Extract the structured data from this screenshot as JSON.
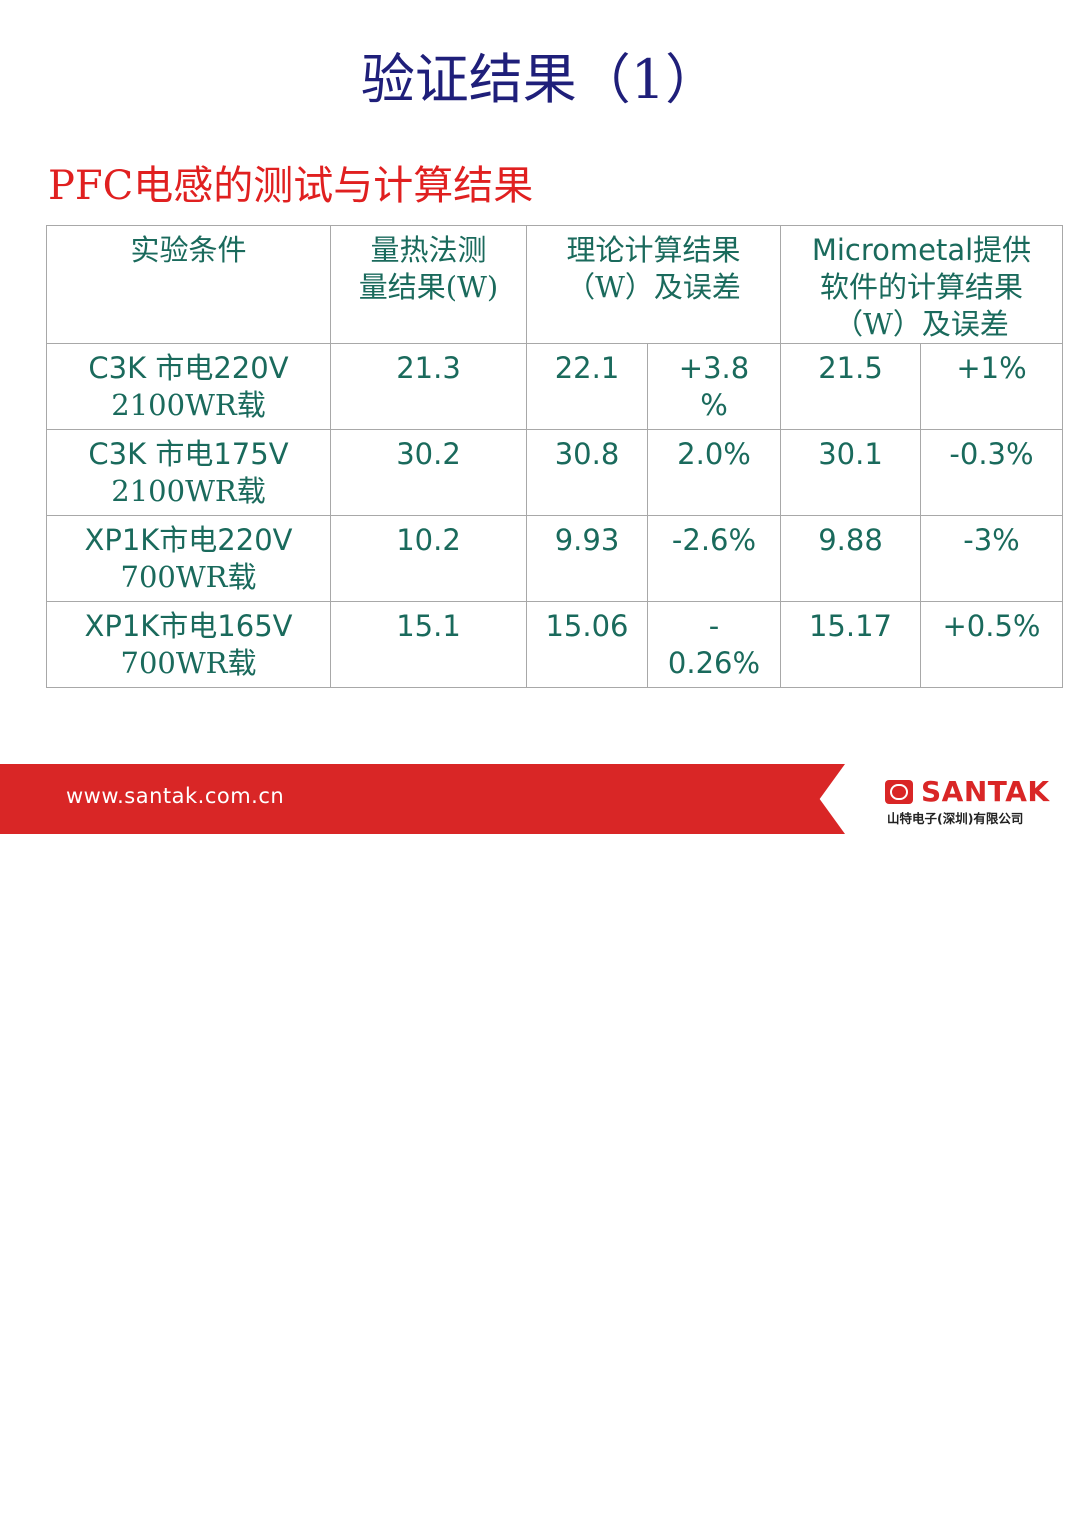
{
  "title": "验证结果（1）",
  "subtitle": "PFC电感的测试与计算结果",
  "table": {
    "headers": {
      "condition": "实验条件",
      "measured_line1": "量热法测",
      "measured_line2": "量结果(W)",
      "theory_line1": "理论计算结果",
      "theory_line2": "（W）及误差",
      "micrometal_line1": "Micrometal提供",
      "micrometal_line2": "软件的计算结果",
      "micrometal_line3": "（W）及误差"
    },
    "rows": [
      {
        "condition_line1": "C3K 市电220V",
        "condition_line2": "2100WR载",
        "measured": "21.3",
        "theory": "22.1",
        "theory_err_line1": "+3.8",
        "theory_err_line2": "%",
        "micrometal": "21.5",
        "micrometal_err": "+1%"
      },
      {
        "condition_line1": "C3K 市电175V",
        "condition_line2": "2100WR载",
        "measured": "30.2",
        "theory": "30.8",
        "theory_err_line1": "2.0%",
        "theory_err_line2": "",
        "micrometal": "30.1",
        "micrometal_err": "-0.3%"
      },
      {
        "condition_line1": "XP1K市电220V",
        "condition_line2": "700WR载",
        "measured": "10.2",
        "theory": "9.93",
        "theory_err_line1": "-2.6%",
        "theory_err_line2": "",
        "micrometal": "9.88",
        "micrometal_err": "-3%"
      },
      {
        "condition_line1": "XP1K市电165V",
        "condition_line2": "700WR载",
        "measured": "15.1",
        "theory": "15.06",
        "theory_err_line1": "-",
        "theory_err_line2": "0.26%",
        "micrometal": "15.17",
        "micrometal_err": "+0.5%"
      }
    ]
  },
  "footer": {
    "url": "www.santak.com.cn",
    "brand": "SANTAK",
    "company": "山特电子(深圳)有限公司"
  },
  "colors": {
    "title": "#1f1f7a",
    "subtitle": "#e02020",
    "table_text": "#1a6a5c",
    "footer_red": "#d92626"
  }
}
